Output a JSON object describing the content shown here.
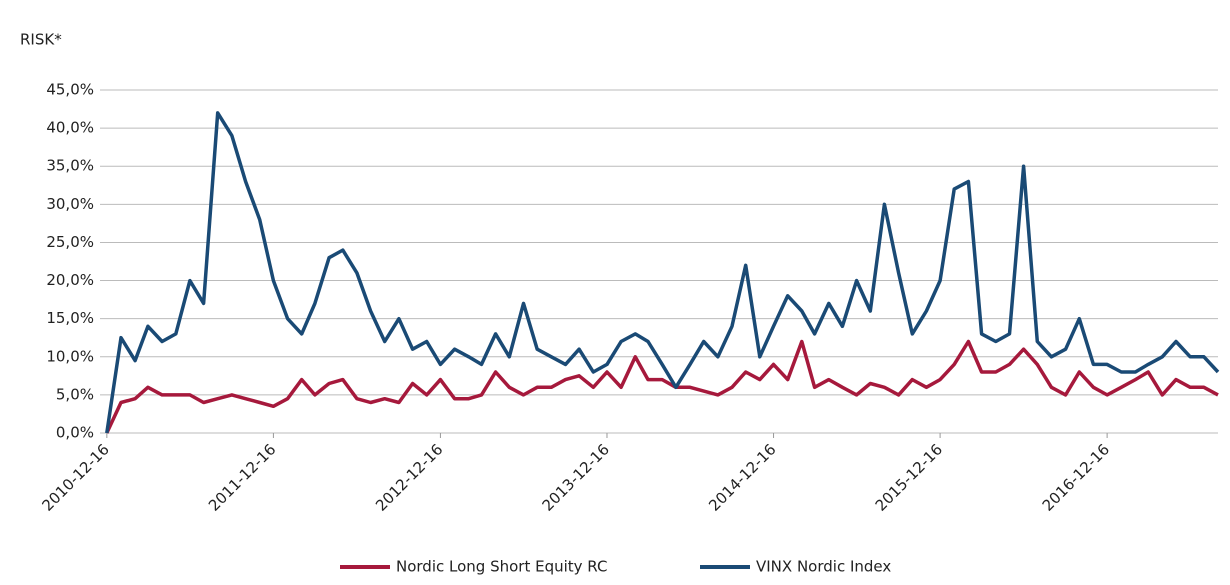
{
  "chart_data": {
    "type": "line",
    "y_axis_label": "RISK*",
    "x": [
      "2010-12-16",
      "2011-01-16",
      "2011-02-16",
      "2011-03-16",
      "2011-04-16",
      "2011-05-16",
      "2011-06-16",
      "2011-07-16",
      "2011-08-16",
      "2011-09-16",
      "2011-10-16",
      "2011-11-16",
      "2011-12-16",
      "2012-01-16",
      "2012-02-16",
      "2012-03-16",
      "2012-04-16",
      "2012-05-16",
      "2012-06-16",
      "2012-07-16",
      "2012-08-16",
      "2012-09-16",
      "2012-10-16",
      "2012-11-16",
      "2012-12-16",
      "2013-01-16",
      "2013-02-16",
      "2013-03-16",
      "2013-04-16",
      "2013-05-16",
      "2013-06-16",
      "2013-07-16",
      "2013-08-16",
      "2013-09-16",
      "2013-10-16",
      "2013-11-16",
      "2013-12-16",
      "2014-01-16",
      "2014-02-16",
      "2014-03-16",
      "2014-04-16",
      "2014-05-16",
      "2014-06-16",
      "2014-07-16",
      "2014-08-16",
      "2014-09-16",
      "2014-10-16",
      "2014-11-16",
      "2014-12-16",
      "2015-01-16",
      "2015-02-16",
      "2015-03-16",
      "2015-04-16",
      "2015-05-16",
      "2015-06-16",
      "2015-07-16",
      "2015-08-16",
      "2015-09-16",
      "2015-10-16",
      "2015-11-16",
      "2015-12-16",
      "2016-01-16",
      "2016-02-16",
      "2016-03-16",
      "2016-04-16",
      "2016-05-16",
      "2016-06-16",
      "2016-07-16",
      "2016-08-16",
      "2016-09-16",
      "2016-10-16",
      "2016-11-16",
      "2016-12-16",
      "2017-01-16",
      "2017-02-16",
      "2017-03-16",
      "2017-04-16",
      "2017-05-16",
      "2017-06-16",
      "2017-07-16",
      "2017-08-16"
    ],
    "series": [
      {
        "name": "Nordic Long Short Equity RC",
        "color": "#a6193c",
        "values": [
          0,
          4,
          4.5,
          6,
          5,
          5,
          5,
          4,
          4.5,
          5,
          4.5,
          4,
          3.5,
          4.5,
          7,
          5,
          6.5,
          7,
          4.5,
          4,
          4.5,
          4,
          6.5,
          5,
          7,
          4.5,
          4.5,
          5,
          8,
          6,
          5,
          6,
          6,
          7,
          7.5,
          6,
          8,
          6,
          10,
          7,
          7,
          6,
          6,
          5.5,
          5,
          6,
          8,
          7,
          9,
          7,
          12,
          6,
          7,
          6,
          5,
          6.5,
          6,
          5,
          7,
          6,
          7,
          9,
          12,
          8,
          8,
          9,
          11,
          9,
          6,
          5,
          8,
          6,
          5,
          6,
          7,
          8,
          5,
          7,
          6,
          6,
          5
        ]
      },
      {
        "name": "VINX Nordic Index",
        "color": "#1a4a75",
        "values": [
          0,
          12.5,
          9.5,
          14,
          12,
          13,
          20,
          17,
          42,
          39,
          33,
          28,
          20,
          15,
          13,
          17,
          23,
          24,
          21,
          16,
          12,
          15,
          11,
          12,
          9,
          11,
          10,
          9,
          13,
          10,
          17,
          11,
          10,
          9,
          11,
          8,
          9,
          12,
          13,
          12,
          9,
          6,
          9,
          12,
          10,
          14,
          22,
          10,
          14,
          18,
          16,
          13,
          17,
          14,
          20,
          16,
          30,
          21,
          13,
          16,
          20,
          32,
          33,
          13,
          12,
          13,
          35,
          12,
          10,
          11,
          15,
          9,
          9,
          8,
          8,
          9,
          10,
          12,
          10,
          10,
          8
        ]
      }
    ],
    "xlim": [
      "2010-12-01",
      "2017-08-16"
    ],
    "xticks": [
      "2010-12-16",
      "2011-12-16",
      "2012-12-16",
      "2013-12-16",
      "2014-12-16",
      "2015-12-16",
      "2016-12-16"
    ],
    "ylim": [
      0,
      45
    ],
    "yticks": [
      {
        "value": 0,
        "label": "0,0%"
      },
      {
        "value": 5,
        "label": "5,0%"
      },
      {
        "value": 10,
        "label": "10,0%"
      },
      {
        "value": 15,
        "label": "15,0%"
      },
      {
        "value": 20,
        "label": "20,0%"
      },
      {
        "value": 25,
        "label": "25,0%"
      },
      {
        "value": 30,
        "label": "30,0%"
      },
      {
        "value": 35,
        "label": "35,0%"
      },
      {
        "value": 40,
        "label": "40,0%"
      },
      {
        "value": 45,
        "label": "45,0%"
      }
    ],
    "grid": true,
    "legend": "bottom"
  }
}
